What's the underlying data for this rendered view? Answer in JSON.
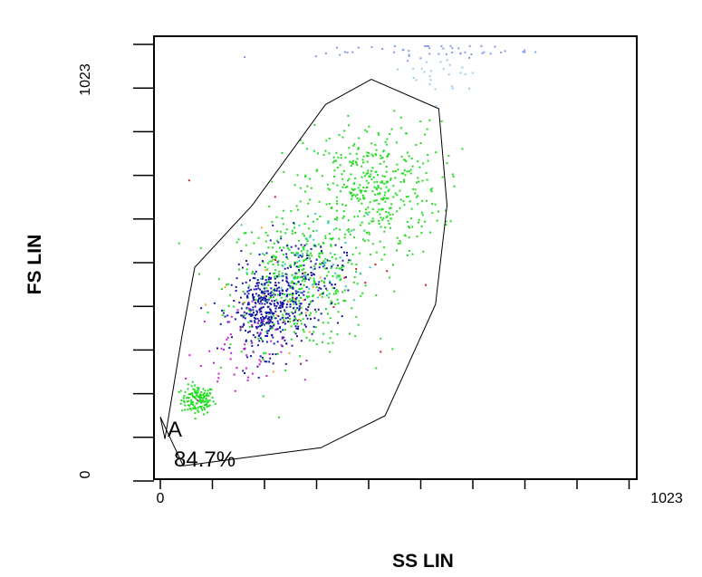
{
  "chart_data": {
    "type": "scatter",
    "title": "",
    "xlabel": "SS LIN",
    "ylabel": "FS LIN",
    "x_tick_labels": [
      "0",
      "1023"
    ],
    "y_tick_labels": [
      "0",
      "1023"
    ],
    "xlim": [
      0,
      1023
    ],
    "ylim": [
      0,
      1023
    ],
    "grid": false,
    "gate": {
      "name": "A",
      "percent": "84.7%",
      "polygon": [
        [
          10,
          85
        ],
        [
          48,
          335
        ],
        [
          75,
          493
        ],
        [
          200,
          640
        ],
        [
          360,
          880
        ],
        [
          460,
          940
        ],
        [
          607,
          870
        ],
        [
          625,
          640
        ],
        [
          600,
          405
        ],
        [
          490,
          140
        ],
        [
          350,
          64
        ],
        [
          50,
          21
        ],
        [
          0,
          137
        ]
      ]
    },
    "clusters": [
      {
        "color": "#22dd22",
        "cx": 80,
        "cy": 180,
        "sx": 18,
        "sy": 17,
        "n": 140
      },
      {
        "color": "#22dd22",
        "cx": 300,
        "cy": 460,
        "sx": 75,
        "sy": 80,
        "n": 420
      },
      {
        "color": "#22dd22",
        "cx": 460,
        "cy": 680,
        "sx": 75,
        "sy": 80,
        "n": 420
      },
      {
        "color": "#1a1aaa",
        "cx": 230,
        "cy": 390,
        "sx": 38,
        "sy": 50,
        "n": 380
      },
      {
        "color": "#1a1aaa",
        "cx": 310,
        "cy": 470,
        "sx": 45,
        "sy": 50,
        "n": 140
      },
      {
        "color": "#cc22cc",
        "cx": 160,
        "cy": 290,
        "sx": 55,
        "sy": 60,
        "n": 55
      },
      {
        "color": "#33cccc",
        "cx": 330,
        "cy": 500,
        "sx": 60,
        "sy": 60,
        "n": 45
      },
      {
        "color": "#ff9933",
        "cx": 290,
        "cy": 420,
        "sx": 80,
        "sy": 80,
        "n": 20
      },
      {
        "color": "#cc2222",
        "cx": 330,
        "cy": 500,
        "sx": 110,
        "sy": 110,
        "n": 12
      },
      {
        "color": "#8899ee",
        "cx": 580,
        "cy": 1010,
        "sx": 120,
        "sy": 10,
        "n": 50
      },
      {
        "color": "#99ccee",
        "cx": 620,
        "cy": 950,
        "sx": 40,
        "sy": 30,
        "n": 25
      }
    ],
    "colors": {
      "axis": "#000000",
      "gate": "#000000",
      "green": "#22dd22",
      "blue": "#1a1aaa",
      "magenta": "#cc22cc",
      "cyan": "#33cccc",
      "orange": "#ff9933",
      "red": "#cc2222"
    }
  }
}
